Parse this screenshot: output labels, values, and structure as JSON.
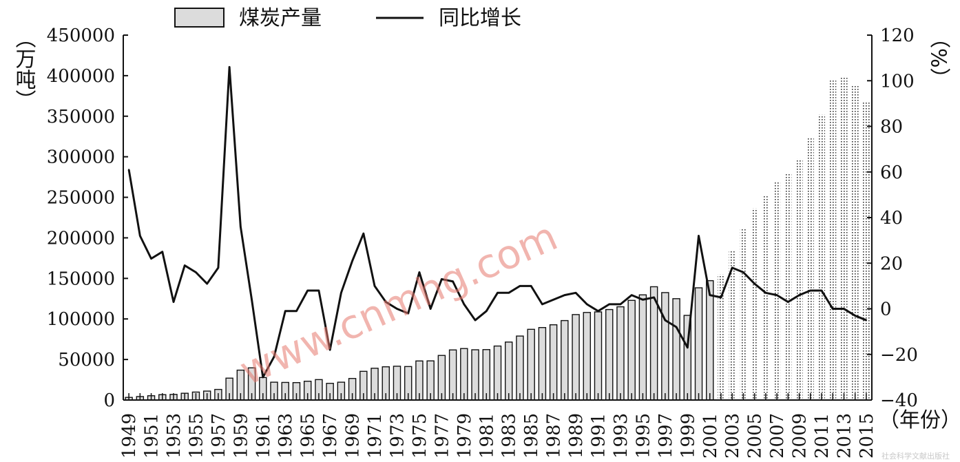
{
  "chart_data": {
    "type": "bar",
    "categories": [
      "1949",
      "1950",
      "1951",
      "1952",
      "1953",
      "1954",
      "1955",
      "1956",
      "1957",
      "1958",
      "1959",
      "1960",
      "1961",
      "1962",
      "1963",
      "1964",
      "1965",
      "1966",
      "1967",
      "1968",
      "1969",
      "1970",
      "1971",
      "1972",
      "1973",
      "1974",
      "1975",
      "1976",
      "1977",
      "1978",
      "1979",
      "1980",
      "1981",
      "1982",
      "1983",
      "1984",
      "1985",
      "1986",
      "1987",
      "1988",
      "1989",
      "1990",
      "1991",
      "1992",
      "1993",
      "1994",
      "1995",
      "1996",
      "1997",
      "1998",
      "1999",
      "2000",
      "2001",
      "2002",
      "2003",
      "2004",
      "2005",
      "2006",
      "2007",
      "2008",
      "2009",
      "2010",
      "2011",
      "2012",
      "2013",
      "2014",
      "2015"
    ],
    "series": [
      {
        "name": "煤炭产量",
        "axis": "left",
        "type": "bar",
        "values": [
          3243,
          4292,
          5308,
          6649,
          6968,
          8366,
          9830,
          11036,
          13073,
          27000,
          36868,
          39721,
          27762,
          22000,
          21700,
          21500,
          23200,
          25200,
          20600,
          22000,
          26600,
          35400,
          39200,
          41000,
          41700,
          41300,
          48200,
          48300,
          55000,
          61800,
          63500,
          62000,
          62200,
          66600,
          71500,
          78900,
          87200,
          89400,
          92800,
          98000,
          105400,
          108000,
          108700,
          111600,
          115000,
          122900,
          129700,
          139700,
          132500,
          125000,
          104400,
          138400,
          147200,
          155000,
          183500,
          212300,
          236500,
          252800,
          269200,
          280200,
          297300,
          323500,
          352000,
          394500,
          397400,
          387400,
          368000
        ]
      },
      {
        "name": "同比增长",
        "axis": "right",
        "type": "line",
        "values": [
          61,
          32,
          22,
          25,
          3,
          19,
          16,
          11,
          18,
          106,
          36,
          4,
          -30,
          -21,
          -1,
          -1,
          8,
          8,
          -18,
          7,
          21,
          33,
          10,
          3,
          0,
          -2,
          16,
          0,
          13,
          12,
          2,
          -5,
          -1,
          7,
          7,
          10,
          10,
          2,
          4,
          6,
          7,
          2,
          -1,
          2,
          2,
          6,
          4,
          5,
          -5,
          -8,
          -17,
          32,
          6,
          5,
          18,
          16,
          11,
          7,
          6,
          3,
          6,
          8,
          8,
          0,
          0,
          -3,
          -5
        ]
      }
    ],
    "left_axis": {
      "label": "（万吨）",
      "ylim": [
        0,
        450000
      ],
      "ticks": [
        "0",
        "50000",
        "100000",
        "150000",
        "200000",
        "250000",
        "300000",
        "350000",
        "400000",
        "450000"
      ]
    },
    "right_axis": {
      "label": "（%）",
      "ylim": [
        -40,
        120
      ],
      "ticks": [
        "−40",
        "−20",
        "0",
        "20",
        "40",
        "60",
        "80",
        "100",
        "120"
      ]
    },
    "x_axis": {
      "label": "（年份）",
      "tick_labels": [
        "1949",
        "1951",
        "1953",
        "1955",
        "1957",
        "1959",
        "1961",
        "1963",
        "1965",
        "1967",
        "1969",
        "1971",
        "1973",
        "1975",
        "1977",
        "1979",
        "1981",
        "1983",
        "1985",
        "1987",
        "1989",
        "1991",
        "1993",
        "1995",
        "1997",
        "1999",
        "2001",
        "2003",
        "2005",
        "2007",
        "2009",
        "2011",
        "2013",
        "2015"
      ]
    },
    "dotted_from_year": "2002",
    "legend_position": "top",
    "grid": false
  },
  "watermark": "www.cnmhg.com",
  "credit": "社会科学文献出版社",
  "colors": {
    "bar_fill": "#dcdcdc",
    "bar_stroke": "#111111",
    "line": "#111111",
    "watermark": "#e8796e"
  }
}
